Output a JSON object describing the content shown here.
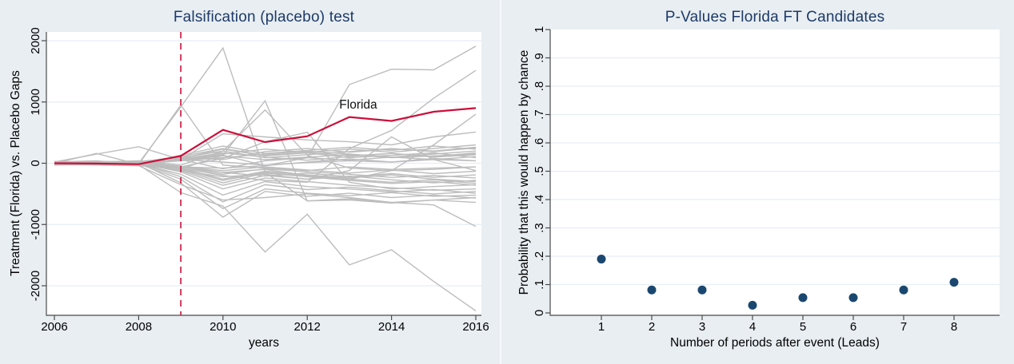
{
  "figure": {
    "background_color": "#e8eef2",
    "plot_background_color": "#ffffff",
    "gridline_color": "#e5eef5",
    "axis_color": "#4a4a4a",
    "title_color": "#1e3a68"
  },
  "chart_data": [
    {
      "type": "line",
      "title": "Falsification (placebo) test",
      "xlabel": "years",
      "ylabel": "Treatment (Florida) vs. Placebo Gaps",
      "x": [
        2006,
        2007,
        2008,
        2009,
        2010,
        2011,
        2012,
        2013,
        2014,
        2015,
        2016
      ],
      "xticks": [
        2006,
        2008,
        2010,
        2012,
        2014,
        2016
      ],
      "xtick_labels": [
        "2006",
        "2008",
        "2010",
        "2012",
        "2014",
        "2016"
      ],
      "yticks": [
        2000,
        1000,
        0,
        -1000,
        -2000
      ],
      "ytick_labels": [
        "2000",
        "1000",
        "0",
        "-1000",
        "-2000"
      ],
      "ylim": [
        -2480,
        2150
      ],
      "xlim": [
        2005.8,
        2016.13
      ],
      "grid": "horizontal",
      "legend": "none",
      "event_line": {
        "x": 2009,
        "color": "#cc0f3a",
        "style": "dashed"
      },
      "annotation": {
        "text": "Florida",
        "x": 2012.9,
        "y": 950
      },
      "treated": {
        "name": "Florida",
        "color": "#cc0f3a",
        "values": [
          0,
          -5,
          -15,
          120,
          545,
          345,
          440,
          755,
          690,
          840,
          900
        ]
      },
      "placebo_color": "#bdbdbd",
      "placebos": [
        [
          30,
          20,
          0,
          920,
          1880,
          -150,
          -615,
          -600,
          -650,
          -600,
          -560
        ],
        [
          20,
          40,
          -20,
          950,
          -30,
          -80,
          -120,
          -60,
          -100,
          -80,
          -60
        ],
        [
          -20,
          -30,
          -40,
          -90,
          130,
          1020,
          -615,
          -580,
          -640,
          -600,
          -640
        ],
        [
          0,
          -20,
          10,
          -60,
          -80,
          -40,
          90,
          1285,
          1535,
          1525,
          1910
        ],
        [
          0,
          10,
          -30,
          -80,
          -200,
          -280,
          -310,
          240,
          535,
          1060,
          1515
        ],
        [
          0,
          -10,
          20,
          -50,
          -150,
          -100,
          -200,
          -260,
          -120,
          300,
          800
        ],
        [
          0,
          30,
          10,
          60,
          480,
          430,
          380,
          350,
          300,
          430,
          510
        ],
        [
          -5,
          -15,
          -25,
          -480,
          -700,
          -1447,
          -833,
          -1658,
          -1412,
          -1930,
          -2410
        ],
        [
          0,
          -20,
          -40,
          -350,
          -600,
          -560,
          -500,
          -560,
          -640,
          -680,
          -1030
        ],
        [
          0,
          20,
          40,
          -30,
          200,
          870,
          130,
          -80,
          -120,
          -100,
          -60
        ],
        [
          10,
          -10,
          30,
          -60,
          80,
          350,
          505,
          -310,
          -420,
          -380,
          -350
        ],
        [
          0,
          0,
          -20,
          -120,
          -220,
          -180,
          -260,
          -120,
          430,
          60,
          -120
        ],
        [
          20,
          150,
          270,
          60,
          20,
          -30,
          10,
          40,
          20,
          60,
          40
        ],
        [
          10,
          0,
          -10,
          40,
          120,
          60,
          100,
          140,
          90,
          120,
          150
        ],
        [
          -10,
          10,
          0,
          -60,
          -180,
          -90,
          -140,
          -180,
          -230,
          -200,
          -240
        ],
        [
          0,
          160,
          -20,
          60,
          150,
          230,
          180,
          120,
          160,
          100,
          140
        ],
        [
          30,
          10,
          20,
          -100,
          -320,
          -160,
          -220,
          -280,
          -330,
          -300,
          -360
        ],
        [
          -20,
          0,
          -30,
          80,
          230,
          120,
          170,
          90,
          130,
          170,
          90
        ],
        [
          10,
          20,
          0,
          -140,
          -420,
          -240,
          -300,
          -360,
          -400,
          -440,
          -420
        ],
        [
          0,
          -10,
          10,
          100,
          60,
          190,
          240,
          180,
          230,
          200,
          260
        ],
        [
          -30,
          -20,
          -10,
          -180,
          -520,
          -300,
          -380,
          -420,
          -470,
          -430,
          -490
        ],
        [
          20,
          30,
          10,
          -80,
          -260,
          -130,
          -190,
          -240,
          -190,
          -260,
          -300
        ],
        [
          0,
          10,
          -20,
          130,
          280,
          160,
          210,
          260,
          210,
          280,
          230
        ],
        [
          -10,
          -30,
          0,
          -220,
          -630,
          -350,
          -430,
          -390,
          -450,
          -500,
          -460
        ],
        [
          10,
          0,
          20,
          60,
          -90,
          40,
          90,
          50,
          100,
          60,
          110
        ],
        [
          -20,
          10,
          -10,
          -260,
          -740,
          -420,
          -490,
          -530,
          -480,
          -540,
          -520
        ],
        [
          0,
          20,
          30,
          90,
          200,
          90,
          140,
          190,
          240,
          190,
          250
        ],
        [
          30,
          0,
          10,
          -320,
          -880,
          -460,
          -540,
          -490,
          -560,
          -520,
          -570
        ],
        [
          -10,
          -20,
          -30,
          50,
          130,
          -40,
          20,
          70,
          20,
          80,
          40
        ],
        [
          10,
          30,
          20,
          -60,
          -150,
          -210,
          -160,
          -220,
          -170,
          -230,
          -190
        ],
        [
          0,
          -10,
          -20,
          70,
          170,
          100,
          50,
          110,
          160,
          110,
          170
        ],
        [
          -30,
          10,
          0,
          -120,
          -360,
          -200,
          -260,
          -210,
          -270,
          -320,
          -280
        ],
        [
          20,
          -10,
          10,
          40,
          90,
          150,
          200,
          150,
          100,
          150,
          200
        ],
        [
          0,
          20,
          -10,
          -90,
          -280,
          -150,
          -210,
          -260,
          -310,
          -270,
          -330
        ],
        [
          -10,
          0,
          20,
          110,
          240,
          130,
          180,
          230,
          180,
          240,
          300
        ],
        [
          10,
          -20,
          0,
          -50,
          -120,
          -60,
          -110,
          -160,
          -110,
          -170,
          -130
        ]
      ]
    },
    {
      "type": "scatter",
      "title": "P-Values Florida FT Candidates",
      "xlabel": "Number of periods after event (Leads)",
      "ylabel": "Probability that this would happen by chance",
      "x": [
        1,
        2,
        3,
        4,
        5,
        6,
        7,
        8
      ],
      "values": [
        0.19,
        0.081,
        0.081,
        0.027,
        0.054,
        0.054,
        0.081,
        0.108
      ],
      "xticks": [
        1,
        2,
        3,
        4,
        5,
        6,
        7,
        8
      ],
      "xtick_labels": [
        "1",
        "2",
        "3",
        "4",
        "5",
        "6",
        "7",
        "8"
      ],
      "yticks": [
        0,
        0.1,
        0.2,
        0.3,
        0.4,
        0.5,
        0.6,
        0.7,
        0.8,
        0.9,
        1
      ],
      "ytick_labels": [
        "0",
        ".1",
        ".2",
        ".3",
        ".4",
        ".5",
        ".6",
        ".7",
        ".8",
        ".9",
        "1"
      ],
      "ylim": [
        0,
        1
      ],
      "grid": "horizontal",
      "legend": "none",
      "marker_color": "#1a476f"
    }
  ]
}
